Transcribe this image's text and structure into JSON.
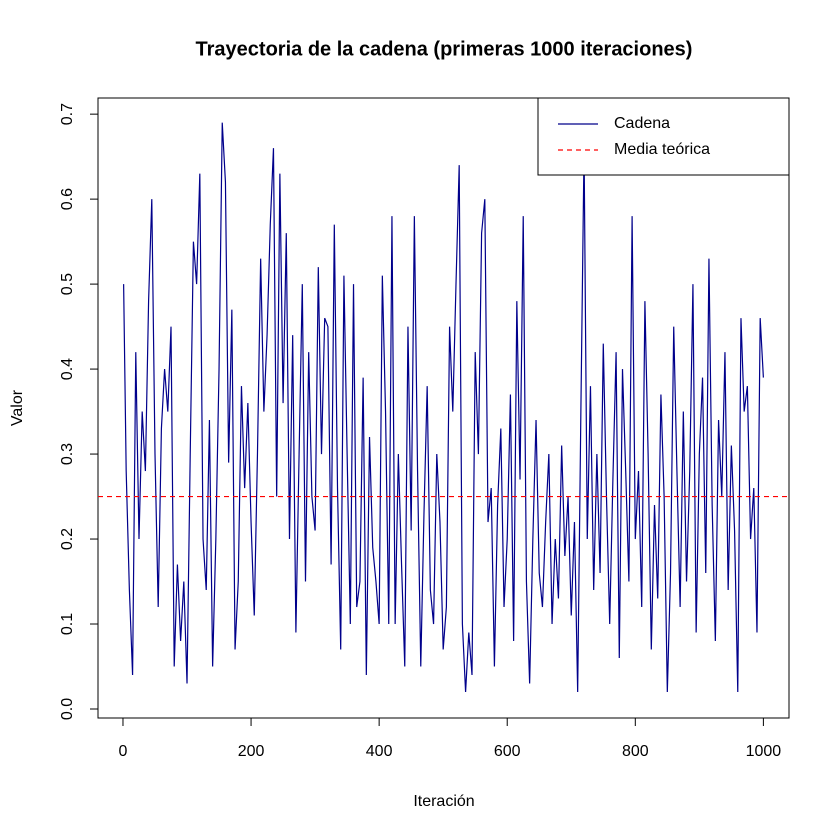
{
  "chart_data": {
    "type": "line",
    "title": "Trayectoria de la cadena (primeras 1000 iteraciones)",
    "x_label": "Iteración",
    "y_label": "Valor",
    "xlim": [
      -39,
      1040
    ],
    "ylim": [
      -0.0106,
      0.719
    ],
    "xticks": [
      0,
      200,
      400,
      600,
      800,
      1000
    ],
    "yticks": [
      {
        "value": 0,
        "label": "0.0"
      },
      0.1,
      0.2,
      0.3,
      0.4,
      0.5,
      0.6,
      0.7
    ],
    "legend": "top-right",
    "x": [
      1,
      5,
      10,
      15,
      20,
      25,
      30,
      35,
      40,
      45,
      50,
      55,
      60,
      65,
      70,
      75,
      80,
      85,
      90,
      95,
      100,
      105,
      110,
      115,
      120,
      125,
      130,
      135,
      140,
      145,
      150,
      155,
      160,
      165,
      170,
      175,
      180,
      185,
      190,
      195,
      200,
      205,
      210,
      215,
      220,
      225,
      230,
      235,
      240,
      245,
      250,
      255,
      260,
      265,
      270,
      275,
      280,
      285,
      290,
      295,
      300,
      305,
      310,
      315,
      320,
      325,
      330,
      335,
      340,
      345,
      350,
      355,
      360,
      365,
      370,
      375,
      380,
      385,
      390,
      395,
      400,
      405,
      410,
      415,
      420,
      425,
      430,
      435,
      440,
      445,
      450,
      455,
      460,
      465,
      470,
      475,
      480,
      485,
      490,
      495,
      500,
      505,
      510,
      515,
      520,
      525,
      530,
      535,
      540,
      545,
      550,
      555,
      560,
      565,
      570,
      575,
      580,
      585,
      590,
      595,
      600,
      605,
      610,
      615,
      620,
      625,
      630,
      635,
      640,
      645,
      650,
      655,
      660,
      665,
      670,
      675,
      680,
      685,
      690,
      695,
      700,
      705,
      710,
      715,
      720,
      725,
      730,
      735,
      740,
      745,
      750,
      755,
      760,
      765,
      770,
      775,
      780,
      785,
      790,
      795,
      800,
      805,
      810,
      815,
      820,
      825,
      830,
      835,
      840,
      845,
      850,
      855,
      860,
      865,
      870,
      875,
      880,
      885,
      890,
      895,
      900,
      905,
      910,
      915,
      920,
      925,
      930,
      935,
      940,
      945,
      950,
      955,
      960,
      965,
      970,
      975,
      980,
      985,
      990,
      995,
      1000
    ],
    "series": [
      {
        "name": "Cadena",
        "color": "#00008B",
        "values": [
          0.5,
          0.28,
          0.14,
          0.04,
          0.42,
          0.2,
          0.35,
          0.28,
          0.48,
          0.6,
          0.3,
          0.12,
          0.33,
          0.4,
          0.35,
          0.45,
          0.05,
          0.17,
          0.08,
          0.15,
          0.03,
          0.3,
          0.55,
          0.5,
          0.63,
          0.2,
          0.14,
          0.34,
          0.05,
          0.2,
          0.4,
          0.69,
          0.62,
          0.29,
          0.47,
          0.07,
          0.15,
          0.38,
          0.26,
          0.36,
          0.22,
          0.11,
          0.3,
          0.53,
          0.35,
          0.44,
          0.57,
          0.66,
          0.25,
          0.63,
          0.36,
          0.56,
          0.2,
          0.44,
          0.09,
          0.3,
          0.5,
          0.15,
          0.42,
          0.25,
          0.21,
          0.52,
          0.3,
          0.46,
          0.45,
          0.17,
          0.57,
          0.26,
          0.07,
          0.51,
          0.3,
          0.1,
          0.5,
          0.12,
          0.15,
          0.39,
          0.04,
          0.32,
          0.19,
          0.15,
          0.1,
          0.51,
          0.35,
          0.1,
          0.58,
          0.1,
          0.3,
          0.17,
          0.05,
          0.45,
          0.21,
          0.58,
          0.28,
          0.05,
          0.23,
          0.38,
          0.14,
          0.1,
          0.3,
          0.22,
          0.07,
          0.12,
          0.45,
          0.35,
          0.5,
          0.64,
          0.1,
          0.02,
          0.09,
          0.04,
          0.42,
          0.3,
          0.56,
          0.6,
          0.22,
          0.26,
          0.05,
          0.24,
          0.33,
          0.12,
          0.2,
          0.37,
          0.08,
          0.48,
          0.27,
          0.58,
          0.15,
          0.03,
          0.2,
          0.34,
          0.16,
          0.12,
          0.22,
          0.3,
          0.1,
          0.2,
          0.13,
          0.31,
          0.18,
          0.25,
          0.11,
          0.22,
          0.02,
          0.35,
          0.66,
          0.2,
          0.38,
          0.14,
          0.3,
          0.16,
          0.43,
          0.25,
          0.1,
          0.27,
          0.42,
          0.06,
          0.4,
          0.28,
          0.15,
          0.58,
          0.2,
          0.28,
          0.12,
          0.48,
          0.3,
          0.07,
          0.24,
          0.13,
          0.37,
          0.25,
          0.02,
          0.16,
          0.45,
          0.28,
          0.12,
          0.35,
          0.15,
          0.28,
          0.5,
          0.09,
          0.3,
          0.39,
          0.16,
          0.53,
          0.24,
          0.08,
          0.34,
          0.25,
          0.42,
          0.14,
          0.31,
          0.21,
          0.02,
          0.46,
          0.35,
          0.38,
          0.2,
          0.26,
          0.09,
          0.46,
          0.39
        ]
      }
    ],
    "reference_line": {
      "name": "Media teórica",
      "value": 0.25,
      "color": "#ff0000"
    }
  }
}
